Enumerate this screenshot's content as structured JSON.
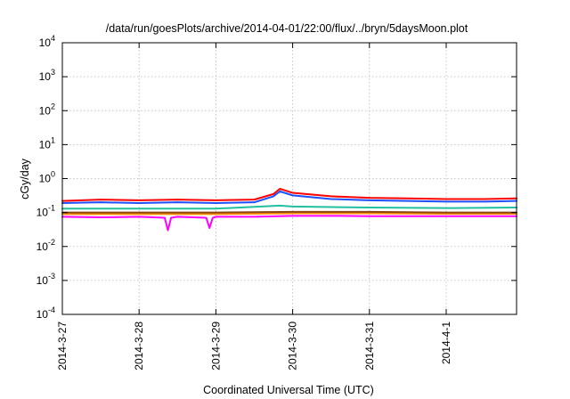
{
  "chart_data": {
    "type": "line",
    "title": "/data/run/goesPlots/archive/2014-04-01/22:00/flux/../bryn/5daysMoon.plot",
    "xlabel": "Coordinated Universal Time (UTC)",
    "ylabel": "cGy/day",
    "y_scale": "log",
    "ylim": [
      0.0001,
      10000
    ],
    "xlim": [
      "2014-03-27",
      "2014-04-01T22:00"
    ],
    "y_ticks": [
      {
        "value": 0.0001,
        "base": "10",
        "exp": "-4"
      },
      {
        "value": 0.001,
        "base": "10",
        "exp": "-3"
      },
      {
        "value": 0.01,
        "base": "10",
        "exp": "-2"
      },
      {
        "value": 0.1,
        "base": "10",
        "exp": "-1"
      },
      {
        "value": 1,
        "base": "10",
        "exp": "0"
      },
      {
        "value": 10,
        "base": "10",
        "exp": "1"
      },
      {
        "value": 100,
        "base": "10",
        "exp": "2"
      },
      {
        "value": 1000,
        "base": "10",
        "exp": "3"
      },
      {
        "value": 10000,
        "base": "10",
        "exp": "4"
      }
    ],
    "x_ticks": [
      {
        "value": "2014-03-27",
        "label": "2014-3-27"
      },
      {
        "value": "2014-03-28",
        "label": "2014-3-28"
      },
      {
        "value": "2014-03-29",
        "label": "2014-3-29"
      },
      {
        "value": "2014-03-30",
        "label": "2014-3-30"
      },
      {
        "value": "2014-03-31",
        "label": "2014-3-31"
      },
      {
        "value": "2014-04-01",
        "label": "2014-4-1"
      }
    ],
    "grid": true,
    "legend": "none",
    "series": [
      {
        "color": "#ff00ff",
        "x": [
          "2014-03-27T00:00",
          "2014-03-27T12:00",
          "2014-03-28T00:00",
          "2014-03-28T08:00",
          "2014-03-28T09:00",
          "2014-03-28T10:00",
          "2014-03-28T12:00",
          "2014-03-28T21:00",
          "2014-03-28T22:00",
          "2014-03-28T23:00",
          "2014-03-29T00:00",
          "2014-03-29T12:00",
          "2014-03-30T00:00",
          "2014-03-30T12:00",
          "2014-03-31T00:00",
          "2014-03-31T12:00",
          "2014-04-01T00:00",
          "2014-04-01T12:00",
          "2014-04-01T22:00"
        ],
        "y": [
          0.075,
          0.072,
          0.075,
          0.07,
          0.03,
          0.07,
          0.075,
          0.07,
          0.035,
          0.07,
          0.075,
          0.075,
          0.08,
          0.08,
          0.078,
          0.078,
          0.078,
          0.078,
          0.078
        ]
      },
      {
        "color": "#ff8c00",
        "x": [
          "2014-03-27T00:00",
          "2014-03-28T00:00",
          "2014-03-29T00:00",
          "2014-03-30T00:00",
          "2014-03-31T00:00",
          "2014-04-01T00:00",
          "2014-04-01T22:00"
        ],
        "y": [
          0.09,
          0.09,
          0.09,
          0.095,
          0.095,
          0.092,
          0.092
        ]
      },
      {
        "color": "#8b4513",
        "x": [
          "2014-03-27T00:00",
          "2014-03-28T00:00",
          "2014-03-29T00:00",
          "2014-03-30T00:00",
          "2014-03-31T00:00",
          "2014-04-01T00:00",
          "2014-04-01T22:00"
        ],
        "y": [
          0.1,
          0.1,
          0.1,
          0.105,
          0.105,
          0.1,
          0.1
        ]
      },
      {
        "color": "#20c0a0",
        "x": [
          "2014-03-27T00:00",
          "2014-03-28T00:00",
          "2014-03-29T00:00",
          "2014-03-29T20:00",
          "2014-03-30T00:00",
          "2014-03-31T00:00",
          "2014-04-01T00:00",
          "2014-04-01T22:00"
        ],
        "y": [
          0.13,
          0.13,
          0.13,
          0.16,
          0.15,
          0.14,
          0.135,
          0.14
        ]
      },
      {
        "color": "#ff0000",
        "x": [
          "2014-03-27T00:00",
          "2014-03-27T12:00",
          "2014-03-28T00:00",
          "2014-03-28T12:00",
          "2014-03-29T00:00",
          "2014-03-29T12:00",
          "2014-03-29T18:00",
          "2014-03-29T20:00",
          "2014-03-30T00:00",
          "2014-03-30T12:00",
          "2014-03-31T00:00",
          "2014-03-31T12:00",
          "2014-04-01T00:00",
          "2014-04-01T12:00",
          "2014-04-01T22:00"
        ],
        "y": [
          0.22,
          0.24,
          0.23,
          0.24,
          0.23,
          0.24,
          0.35,
          0.5,
          0.38,
          0.3,
          0.27,
          0.26,
          0.25,
          0.25,
          0.26
        ]
      },
      {
        "color": "#1e50ff",
        "x": [
          "2014-03-27T00:00",
          "2014-03-27T12:00",
          "2014-03-28T00:00",
          "2014-03-28T12:00",
          "2014-03-29T00:00",
          "2014-03-29T12:00",
          "2014-03-29T18:00",
          "2014-03-29T20:00",
          "2014-03-30T00:00",
          "2014-03-30T12:00",
          "2014-03-31T00:00",
          "2014-03-31T12:00",
          "2014-04-01T00:00",
          "2014-04-01T12:00",
          "2014-04-01T22:00"
        ],
        "y": [
          0.19,
          0.2,
          0.19,
          0.2,
          0.19,
          0.2,
          0.3,
          0.42,
          0.32,
          0.25,
          0.23,
          0.22,
          0.21,
          0.21,
          0.22
        ]
      }
    ]
  }
}
